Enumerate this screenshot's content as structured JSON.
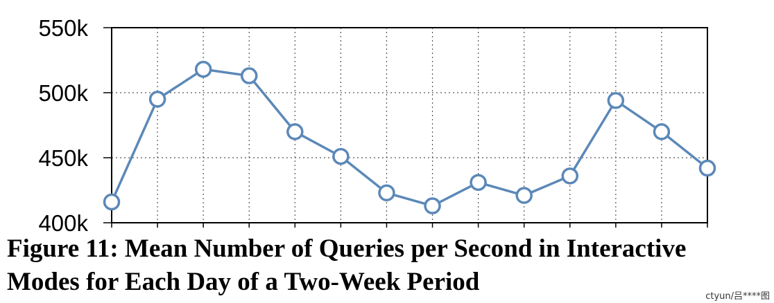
{
  "chart_data": {
    "type": "line",
    "title": "",
    "xlabel": "",
    "ylabel": "",
    "ylim": [
      400000,
      550000
    ],
    "yticks": [
      400000,
      450000,
      500000,
      550000
    ],
    "ytick_labels": [
      "400k",
      "450k",
      "500k",
      "550k"
    ],
    "grid": true,
    "x": [
      1,
      2,
      3,
      4,
      5,
      6,
      7,
      8,
      9,
      10,
      11,
      12,
      13,
      14
    ],
    "series": [
      {
        "color": "#5b88b8",
        "marker": "open-circle",
        "values": [
          416000,
          495000,
          518000,
          513000,
          470000,
          451000,
          423000,
          413000,
          431000,
          421000,
          436000,
          494000,
          470000,
          442000
        ]
      }
    ]
  },
  "caption": {
    "line1": "Figure 11: Mean Number of Queries per Second in Interactive",
    "line2": "Modes for Each Day of a Two-Week Period"
  },
  "watermark": "ctyun/吕****图"
}
